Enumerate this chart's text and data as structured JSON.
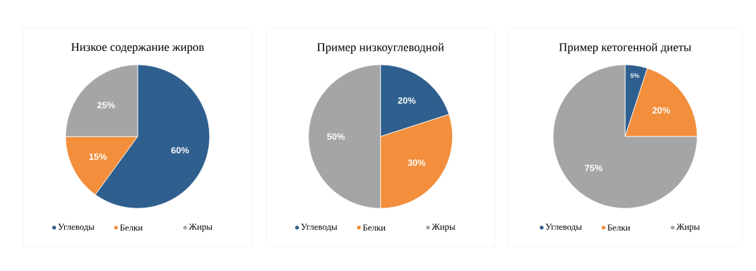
{
  "chart_data": [
    {
      "type": "pie",
      "title": "Низкое содержание жиров",
      "categories": [
        "Углеводы",
        "Белки",
        "Жиры"
      ],
      "values": [
        60,
        15,
        25
      ],
      "value_labels": [
        "60%",
        "15%",
        "25%"
      ],
      "colors": [
        "#2e5f8e",
        "#f28e3c",
        "#a5a5a5"
      ],
      "legend": "bottom"
    },
    {
      "type": "pie",
      "title": "Пример низкоуглеводной",
      "categories": [
        "Углеводы",
        "Белки",
        "Жиры"
      ],
      "values": [
        20,
        30,
        50
      ],
      "value_labels": [
        "20%",
        "30%",
        "50%"
      ],
      "colors": [
        "#2e5f8e",
        "#f28e3c",
        "#a5a5a5"
      ],
      "legend": "bottom"
    },
    {
      "type": "pie",
      "title": "Пример кетогенной диеты",
      "categories": [
        "Углеводы",
        "Белки",
        "Жиры"
      ],
      "values": [
        5,
        20,
        75
      ],
      "value_labels": [
        "5%",
        "20%",
        "75%"
      ],
      "colors": [
        "#2e5f8e",
        "#f28e3c",
        "#a5a5a5"
      ],
      "legend": "bottom"
    }
  ]
}
